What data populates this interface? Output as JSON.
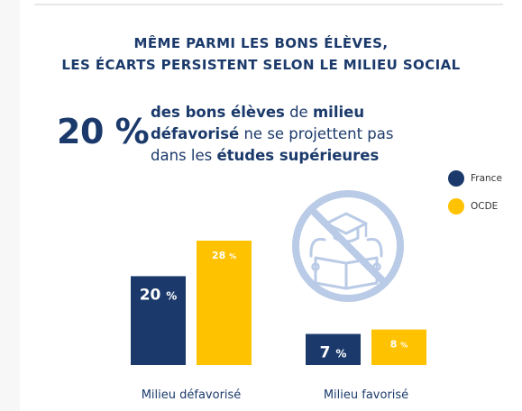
{
  "header": {
    "title_line1": "MÊME PARMI LES BONS ÉLÈVES,",
    "title_line2": "LES ÉCARTS PERSISTENT SELON LE MILIEU SOCIAL"
  },
  "highlight": {
    "big_number": "20 %",
    "line1_a": "des bons élèves",
    "line1_b": " de ",
    "line1_c": "milieu",
    "line2_a": "défavorisé",
    "line2_b": " ne se projettent pas",
    "line3_a": "dans les ",
    "line3_b": "études supérieures"
  },
  "icon": "graduate-reading-book-prohibited-icon",
  "colors": {
    "france": "#1b3a6b",
    "ocde": "#ffc200",
    "icon": "#b9cbe6"
  },
  "chart_data": {
    "type": "bar",
    "categories": [
      "Milieu défavorisé",
      "Milieu favorisé"
    ],
    "series": [
      {
        "name": "France",
        "values": [
          20,
          7
        ],
        "labels": [
          "20 %",
          "7 %"
        ]
      },
      {
        "name": "OCDE",
        "values": [
          28,
          8
        ],
        "labels": [
          "28 %",
          "8 %"
        ]
      }
    ],
    "legend_position": "right",
    "grid": false,
    "ylim": [
      0,
      28
    ]
  }
}
